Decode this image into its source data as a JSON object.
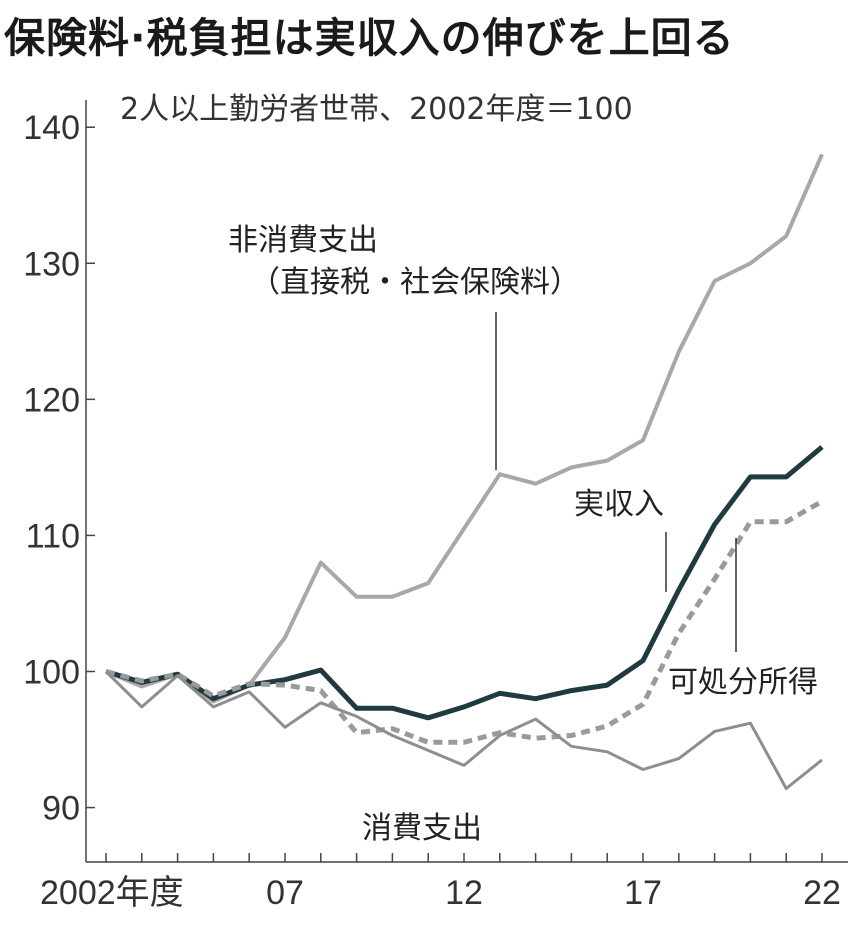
{
  "title": "保険料·税負担は実収入の伸びを上回る",
  "subtitle": "2人以上勤労者世帯、2002年度＝100",
  "chart_data": {
    "type": "line",
    "x": [
      2002,
      2003,
      2004,
      2005,
      2006,
      2007,
      2008,
      2009,
      2010,
      2011,
      2012,
      2013,
      2014,
      2015,
      2016,
      2017,
      2018,
      2019,
      2020,
      2021,
      2022
    ],
    "x_tick_values": [
      2002,
      2007,
      2012,
      2017,
      2022
    ],
    "x_tick_labels": [
      "2002年度",
      "07",
      "12",
      "17",
      "22"
    ],
    "ylim": [
      86,
      142
    ],
    "y_ticks": [
      90,
      100,
      110,
      120,
      130,
      140
    ],
    "series": [
      {
        "name": "非消費支出（直接税・社会保険料）",
        "label_lines": [
          "非消費支出",
          "（直接税・社会保険料）"
        ],
        "color": "#a8a8a8",
        "dash": "",
        "width": 4,
        "values": [
          100,
          98.9,
          99.8,
          97.8,
          99,
          102.5,
          108,
          105.5,
          105.5,
          106.5,
          110.5,
          114.5,
          113.8,
          115,
          115.5,
          117,
          123.5,
          128.7,
          130,
          132,
          138
        ]
      },
      {
        "name": "実収入",
        "label_lines": [
          "実収入"
        ],
        "color": "#1f3a40",
        "dash": "",
        "width": 5,
        "values": [
          100,
          99.2,
          99.8,
          98,
          99,
          99.4,
          100.1,
          97.3,
          97.3,
          96.6,
          97.4,
          98.4,
          98,
          98.6,
          99,
          100.8,
          106,
          110.8,
          114.3,
          114.3,
          116.5
        ]
      },
      {
        "name": "可処分所得",
        "label_lines": [
          "可処分所得"
        ],
        "color": "#9a9a9a",
        "dash": "9,6",
        "width": 5,
        "values": [
          100,
          99.3,
          99.8,
          98.2,
          99.1,
          99,
          98.6,
          95.5,
          95.8,
          94.8,
          94.8,
          95.5,
          95.1,
          95.3,
          96,
          97.6,
          102.8,
          106.8,
          111,
          111,
          112.5
        ]
      },
      {
        "name": "消費支出",
        "label_lines": [
          "消費支出"
        ],
        "color": "#8e8e8e",
        "dash": "",
        "width": 3,
        "values": [
          100,
          97.4,
          99.7,
          97.4,
          98.5,
          95.9,
          97.7,
          96.7,
          95.3,
          94.2,
          93.1,
          95.3,
          96.5,
          94.5,
          94.1,
          92.8,
          93.6,
          95.6,
          96.2,
          91.4,
          93.5
        ]
      }
    ]
  }
}
